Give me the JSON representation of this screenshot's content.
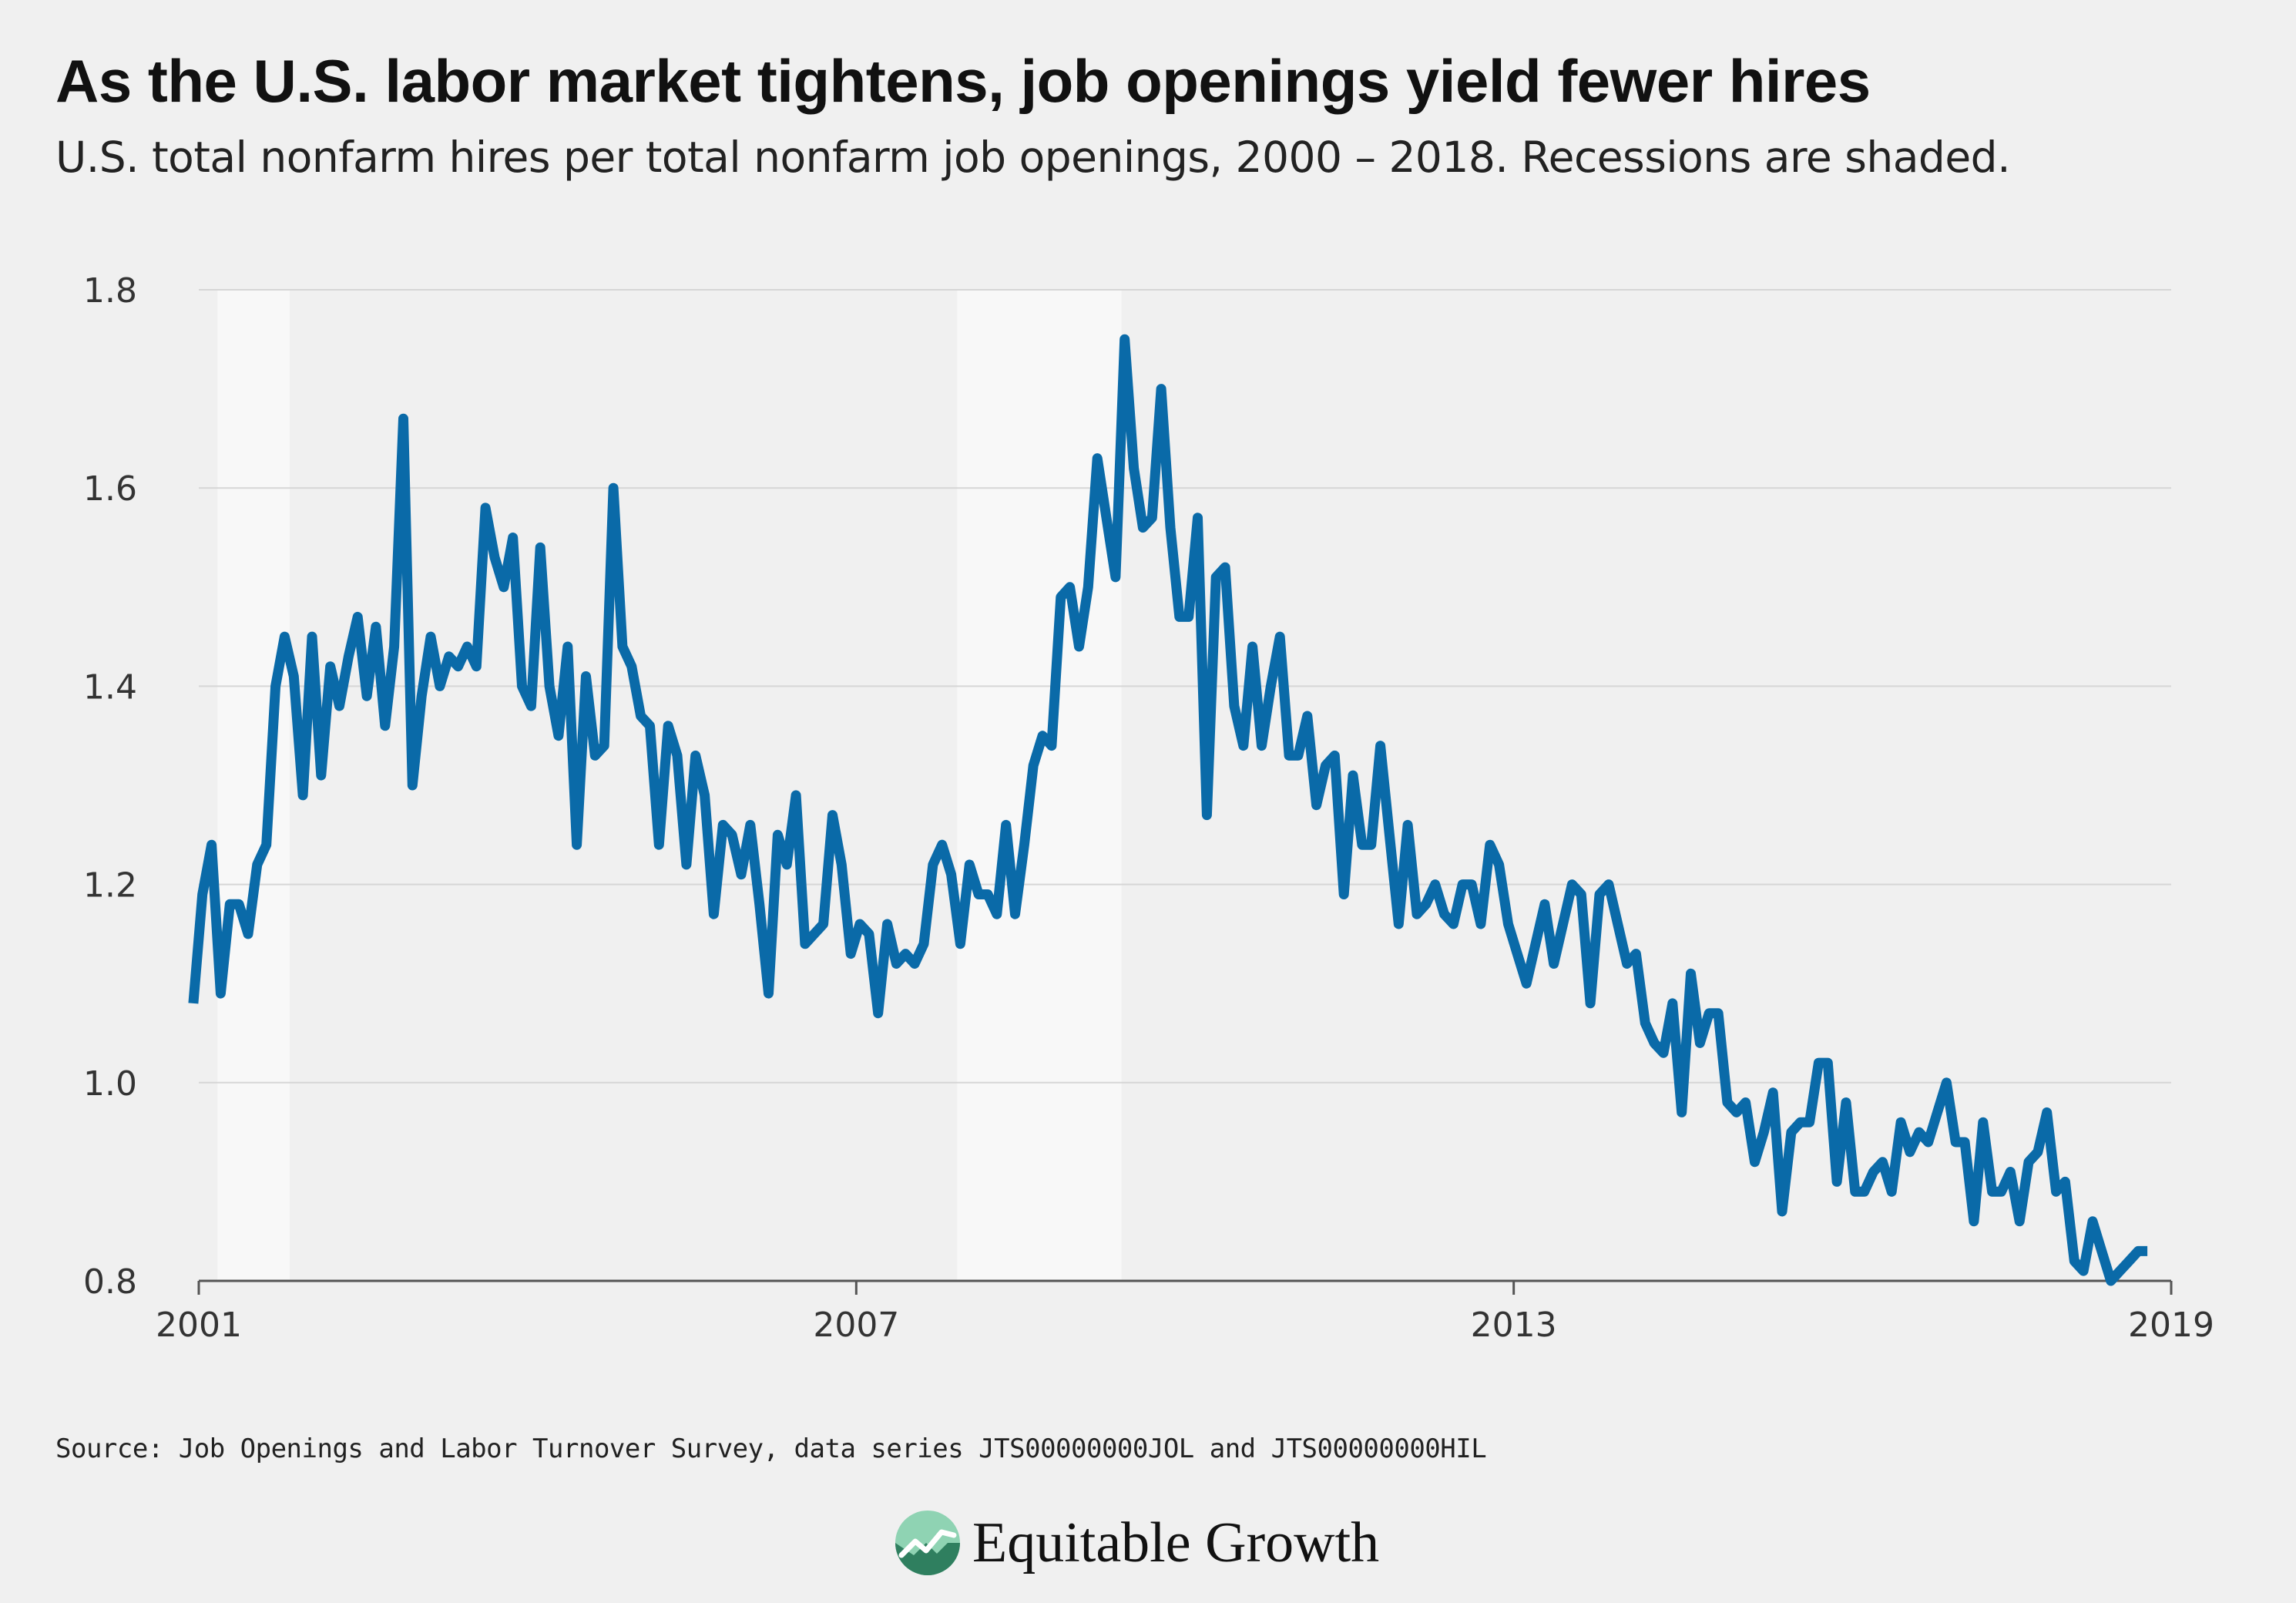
{
  "header": {
    "title": "As the U.S. labor market tightens, job openings yield fewer hires",
    "subtitle": "U.S. total nonfarm hires per total nonfarm job openings, 2000 – 2018. Recessions are shaded."
  },
  "footer": {
    "source": "Source: Job Openings and Labor Turnover Survey, data series JTS00000000JOL and JTS00000000HIL",
    "brand": "Equitable Growth",
    "logo_icon": "equitable-growth-logo-icon"
  },
  "colors": {
    "line": "#0a6aa8",
    "recession_shade": "#f8f8f8",
    "grid": "#d6d6d6",
    "background": "#f0f0f0",
    "logo_dark": "#2f7f5f",
    "logo_light": "#8fd3b3"
  },
  "chart_data": {
    "type": "line",
    "x_tick_labels": [
      "2001",
      "2007",
      "2013",
      "2019"
    ],
    "x_ticks": [
      2001,
      2007,
      2013,
      2019
    ],
    "y_tick_labels": [
      "0.8",
      "1.0",
      "1.2",
      "1.4",
      "1.6",
      "1.8"
    ],
    "y_ticks": [
      0.8,
      1.0,
      1.2,
      1.4,
      1.6,
      1.8
    ],
    "xlim": [
      2001,
      2019
    ],
    "ylim": [
      0.8,
      1.8
    ],
    "grid": true,
    "recessions": [
      [
        2001.17,
        2001.83
      ],
      [
        2007.92,
        2009.42
      ]
    ],
    "series": [
      {
        "x_start": 2000.95,
        "x_step": 0.08333,
        "values": [
          1.08,
          1.19,
          1.24,
          1.09,
          1.18,
          1.18,
          1.15,
          1.22,
          1.24,
          1.4,
          1.45,
          1.41,
          1.29,
          1.45,
          1.31,
          1.42,
          1.38,
          1.43,
          1.47,
          1.39,
          1.46,
          1.36,
          1.44,
          1.67,
          1.3,
          1.39,
          1.45,
          1.4,
          1.43,
          1.42,
          1.44,
          1.42,
          1.58,
          1.53,
          1.5,
          1.55,
          1.4,
          1.38,
          1.54,
          1.4,
          1.35,
          1.44,
          1.24,
          1.41,
          1.33,
          1.34,
          1.6,
          1.44,
          1.42,
          1.37,
          1.36,
          1.24,
          1.36,
          1.33,
          1.22,
          1.33,
          1.29,
          1.17,
          1.26,
          1.25,
          1.21,
          1.26,
          1.18,
          1.09,
          1.25,
          1.22,
          1.29,
          1.14,
          1.15,
          1.16,
          1.27,
          1.22,
          1.13,
          1.16,
          1.15,
          1.07,
          1.16,
          1.12,
          1.13,
          1.12,
          1.14,
          1.22,
          1.24,
          1.21,
          1.14,
          1.22,
          1.19,
          1.19,
          1.17,
          1.26,
          1.17,
          1.24,
          1.32,
          1.35,
          1.34,
          1.49,
          1.5,
          1.44,
          1.5,
          1.63,
          1.57,
          1.51,
          1.75,
          1.62,
          1.56,
          1.57,
          1.7,
          1.56,
          1.47,
          1.47,
          1.57,
          1.27,
          1.51,
          1.52,
          1.38,
          1.34,
          1.44,
          1.34,
          1.4,
          1.45,
          1.33,
          1.33,
          1.37,
          1.28,
          1.32,
          1.33,
          1.19,
          1.31,
          1.24,
          1.24,
          1.34,
          1.25,
          1.16,
          1.26,
          1.17,
          1.18,
          1.2,
          1.17,
          1.16,
          1.2,
          1.2,
          1.16,
          1.24,
          1.22,
          1.16,
          1.13,
          1.1,
          1.14,
          1.18,
          1.12,
          1.16,
          1.2,
          1.19,
          1.08,
          1.19,
          1.2,
          1.16,
          1.12,
          1.13,
          1.06,
          1.04,
          1.03,
          1.08,
          0.97,
          1.11,
          1.04,
          1.07,
          1.07,
          0.98,
          0.97,
          0.98,
          0.92,
          0.95,
          0.99,
          0.87,
          0.95,
          0.96,
          0.96,
          1.02,
          1.02,
          0.9,
          0.98,
          0.89,
          0.89,
          0.91,
          0.92,
          0.89,
          0.96,
          0.93,
          0.95,
          0.94,
          0.97,
          1.0,
          0.94,
          0.94,
          0.86,
          0.96,
          0.89,
          0.89,
          0.91,
          0.86,
          0.92,
          0.93,
          0.97,
          0.89,
          0.9,
          0.82,
          0.81,
          0.86,
          0.83,
          0.8,
          0.81,
          0.82,
          0.83,
          0.83
        ]
      }
    ]
  }
}
